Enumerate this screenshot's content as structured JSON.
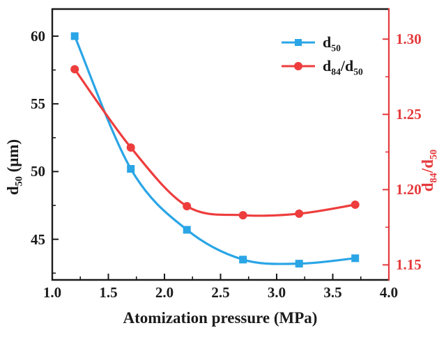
{
  "figure": {
    "background": "#ffffff",
    "axis_black": "#1b1b1b",
    "axis_red": "#e43a3c"
  },
  "chart_data": {
    "type": "line",
    "title": "",
    "xlabel": "Atomization pressure (MPa)",
    "ylabel_left": "d50 (μm)",
    "ylabel_left_parts": [
      {
        "t": "d"
      },
      {
        "t": "50",
        "sub": true
      },
      {
        "t": " (μm)"
      }
    ],
    "ylabel_right": "d84/d50",
    "ylabel_right_parts": [
      {
        "t": "d"
      },
      {
        "t": "84",
        "sub": true
      },
      {
        "t": "/d"
      },
      {
        "t": "50",
        "sub": true
      }
    ],
    "grid": false,
    "legend_position": "top-right-inside",
    "x_axis": {
      "range": [
        1.0,
        4.0
      ],
      "major_ticks": [
        1.0,
        1.5,
        2.0,
        2.5,
        3.0,
        3.5,
        4.0
      ],
      "tick_labels": [
        "1.0",
        "1.5",
        "2.0",
        "2.5",
        "3.0",
        "3.5",
        "4.0"
      ],
      "minor_ticks": [
        1.25,
        1.75,
        2.25,
        2.75,
        3.25,
        3.75
      ],
      "color": "#1b1b1b"
    },
    "left_axis": {
      "range": [
        42,
        62
      ],
      "major_ticks": [
        45,
        50,
        55,
        60
      ],
      "tick_labels": [
        "45",
        "50",
        "55",
        "60"
      ],
      "minor_ticks": [
        42.5,
        47.5,
        52.5,
        57.5
      ],
      "color": "#1b1b1b"
    },
    "right_axis": {
      "range": [
        1.14,
        1.32
      ],
      "major_ticks": [
        1.15,
        1.2,
        1.25,
        1.3
      ],
      "tick_labels": [
        "1.15",
        "1.20",
        "1.25",
        "1.30"
      ],
      "minor_ticks": [
        1.175,
        1.225,
        1.275
      ],
      "color": "#e43a3c"
    },
    "x": [
      1.2,
      1.7,
      2.2,
      2.7,
      3.2,
      3.7
    ],
    "series": [
      {
        "name": "d50",
        "label_parts": [
          {
            "t": "d"
          },
          {
            "t": "50",
            "sub": true
          }
        ],
        "axis": "left",
        "color": "#2aa5e6",
        "marker": "square",
        "values": [
          60.0,
          50.2,
          45.7,
          43.5,
          43.2,
          43.6
        ]
      },
      {
        "name": "d84/d50",
        "label_parts": [
          {
            "t": "d"
          },
          {
            "t": "84",
            "sub": true
          },
          {
            "t": "/d"
          },
          {
            "t": "50",
            "sub": true
          }
        ],
        "axis": "right",
        "color": "#ee3d3d",
        "marker": "circle",
        "values": [
          1.28,
          1.228,
          1.189,
          1.183,
          1.184,
          1.19
        ]
      }
    ]
  }
}
